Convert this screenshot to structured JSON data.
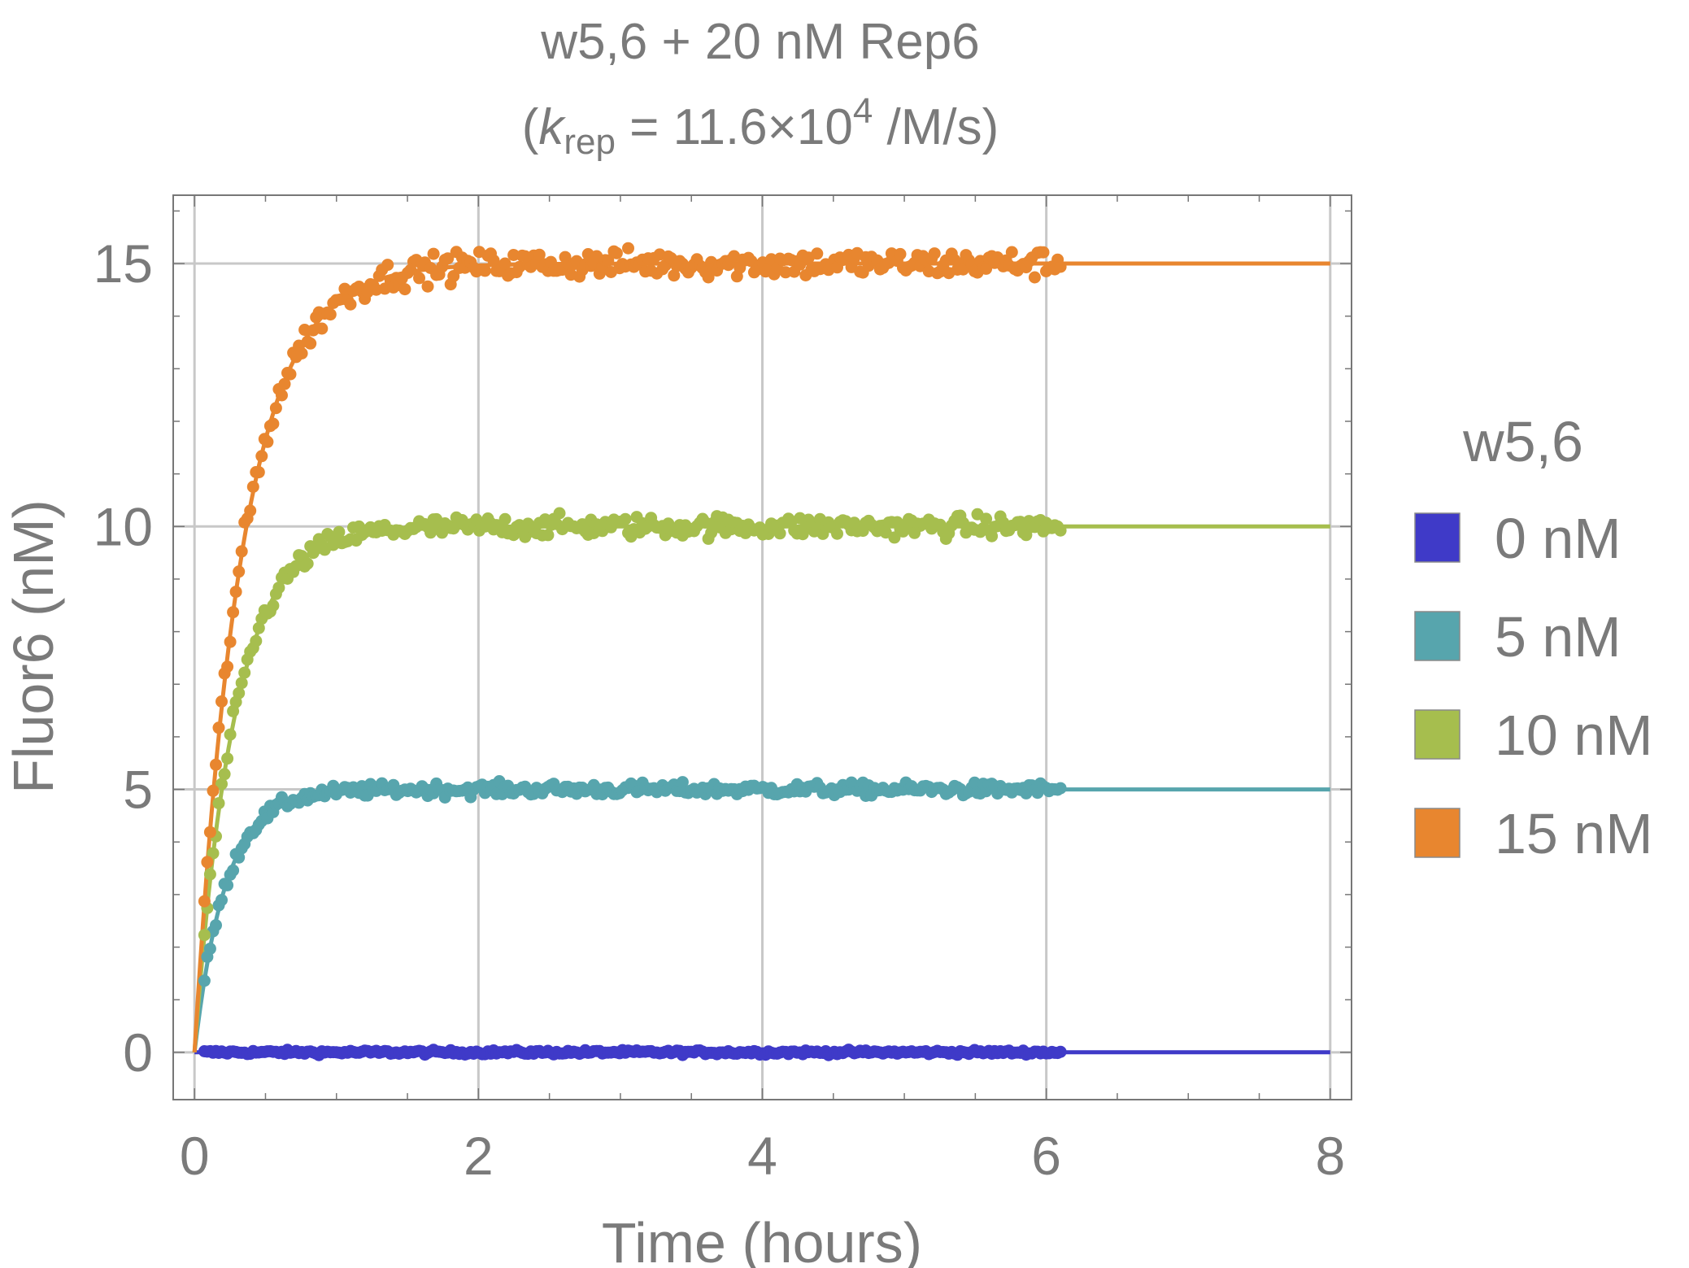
{
  "chart_data": {
    "type": "scatter",
    "title_line1": "w5,6 + 20 nM Rep6",
    "title_line2": {
      "open": "(",
      "k": "k",
      "k_sub": "rep",
      "eq": " = 11.6×10",
      "exp": "4",
      "unit": " /M/s)"
    },
    "xlabel": "Time (hours)",
    "ylabel": "Fluor6 (nM)",
    "xlim": [
      -0.15,
      8.15
    ],
    "ylim": [
      -0.9,
      16.3
    ],
    "xticks": [
      "0",
      "2",
      "4",
      "6",
      "8"
    ],
    "xtick_values": [
      0,
      2,
      4,
      6,
      8
    ],
    "yticks": [
      "0",
      "5",
      "10",
      "15"
    ],
    "ytick_values": [
      0,
      5,
      10,
      15
    ],
    "grid": true,
    "legend_position": "right",
    "legend_title": "w5,6",
    "series": [
      {
        "name": "0 nM",
        "color": "#3f3ac8",
        "plateau": 0,
        "rate": 4.0,
        "noise": 0.04
      },
      {
        "name": "5 nM",
        "color": "#57a5ad",
        "plateau": 5,
        "rate": 4.6,
        "noise": 0.12
      },
      {
        "name": "10 nM",
        "color": "#a6be4e",
        "plateau": 10,
        "rate": 3.6,
        "noise": 0.2
      },
      {
        "name": "15 nM",
        "color": "#e8862f",
        "plateau": 15,
        "rate": 3.0,
        "noise": 0.26
      }
    ],
    "data_x_range": [
      0.07,
      6.1
    ],
    "fit_x_range": [
      0,
      8
    ]
  }
}
